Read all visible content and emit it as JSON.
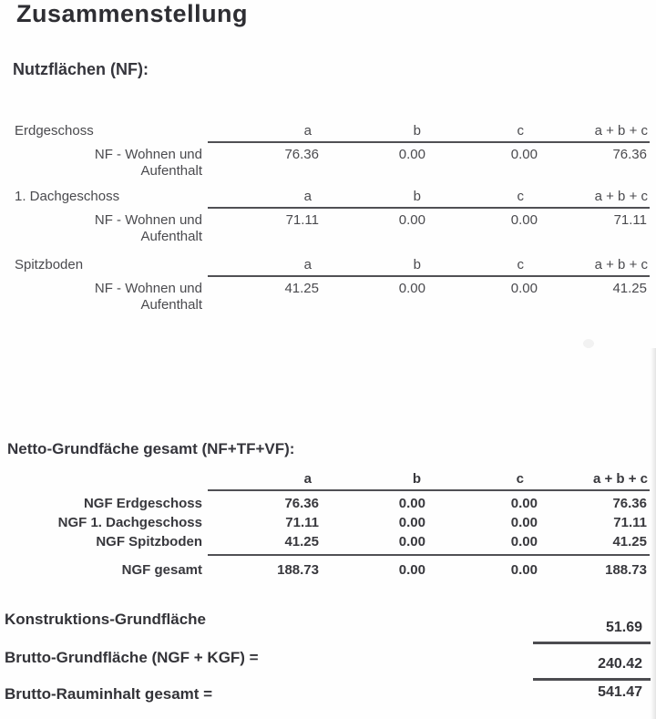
{
  "document": {
    "title": "Zusammenstellung",
    "nf_section": {
      "heading": "Nutzflächen (NF):",
      "column_headers": [
        "a",
        "b",
        "c",
        "a + b + c"
      ],
      "tables": [
        {
          "floor": "Erdgeschoss",
          "row_label_line1": "NF - Wohnen und",
          "row_label_line2": "Aufenthalt",
          "values": [
            "76.36",
            "0.00",
            "0.00",
            "76.36"
          ]
        },
        {
          "floor": "1. Dachgeschoss",
          "row_label_line1": "NF - Wohnen und",
          "row_label_line2": "Aufenthalt",
          "values": [
            "71.11",
            "0.00",
            "0.00",
            "71.11"
          ]
        },
        {
          "floor": "Spitzboden",
          "row_label_line1": "NF - Wohnen und",
          "row_label_line2": "Aufenthalt",
          "values": [
            "41.25",
            "0.00",
            "0.00",
            "41.25"
          ]
        }
      ]
    },
    "ngf_section": {
      "heading": "Netto-Grundfäche gesamt (NF+TF+VF):",
      "column_headers": [
        "a",
        "b",
        "c",
        "a + b + c"
      ],
      "rows": [
        {
          "label": "NGF Erdgeschoss",
          "values": [
            "76.36",
            "0.00",
            "0.00",
            "76.36"
          ]
        },
        {
          "label": "NGF 1. Dachgeschoss",
          "values": [
            "71.11",
            "0.00",
            "0.00",
            "71.11"
          ]
        },
        {
          "label": "NGF Spitzboden",
          "values": [
            "41.25",
            "0.00",
            "0.00",
            "41.25"
          ]
        }
      ],
      "total_row": {
        "label": "NGF gesamt",
        "values": [
          "188.73",
          "0.00",
          "0.00",
          "188.73"
        ]
      }
    },
    "summary": {
      "rows": [
        {
          "label": "Konstruktions-Grundfläche",
          "value": "51.69"
        },
        {
          "label": "Brutto-Grundfläche (NGF + KGF) =",
          "value": "240.42"
        },
        {
          "label": "Brutto-Rauminhalt gesamt =",
          "value": "541.47"
        }
      ]
    }
  }
}
